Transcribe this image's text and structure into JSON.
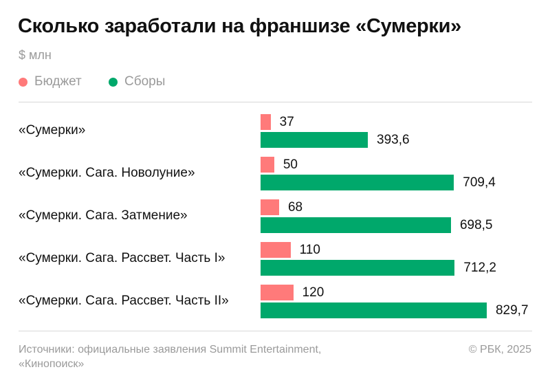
{
  "title": "Сколько заработали на франшизе «Сумерки»",
  "unit": "$ млн",
  "colors": {
    "budget": "#ff7a7a",
    "gross": "#00a86b"
  },
  "chart_data": {
    "type": "bar",
    "orientation": "horizontal",
    "title": "Сколько заработали на франшизе «Сумерки»",
    "ylabel": "$ млн",
    "categories": [
      "«Сумерки»",
      "«Сумерки. Сага. Новолуние»",
      "«Сумерки. Сага. Затмение»",
      "«Сумерки. Сага. Рассвет. Часть I»",
      "«Сумерки. Сага. Рассвет. Часть II»"
    ],
    "series": [
      {
        "name": "Бюджет",
        "values": [
          37,
          50,
          68,
          110,
          120
        ],
        "labels": [
          "37",
          "50",
          "68",
          "110",
          "120"
        ]
      },
      {
        "name": "Сборы",
        "values": [
          393.6,
          709.4,
          698.5,
          712.2,
          829.7
        ],
        "labels": [
          "393,6",
          "709,4",
          "698,5",
          "712,2",
          "829,7"
        ]
      }
    ],
    "legend": "top-left",
    "grid": false
  },
  "footer": {
    "source_line1": "Источники: официальные заявления Summit Entertainment,",
    "source_line2": "«Кинопоиск»",
    "copyright": "© РБК, 2025"
  }
}
